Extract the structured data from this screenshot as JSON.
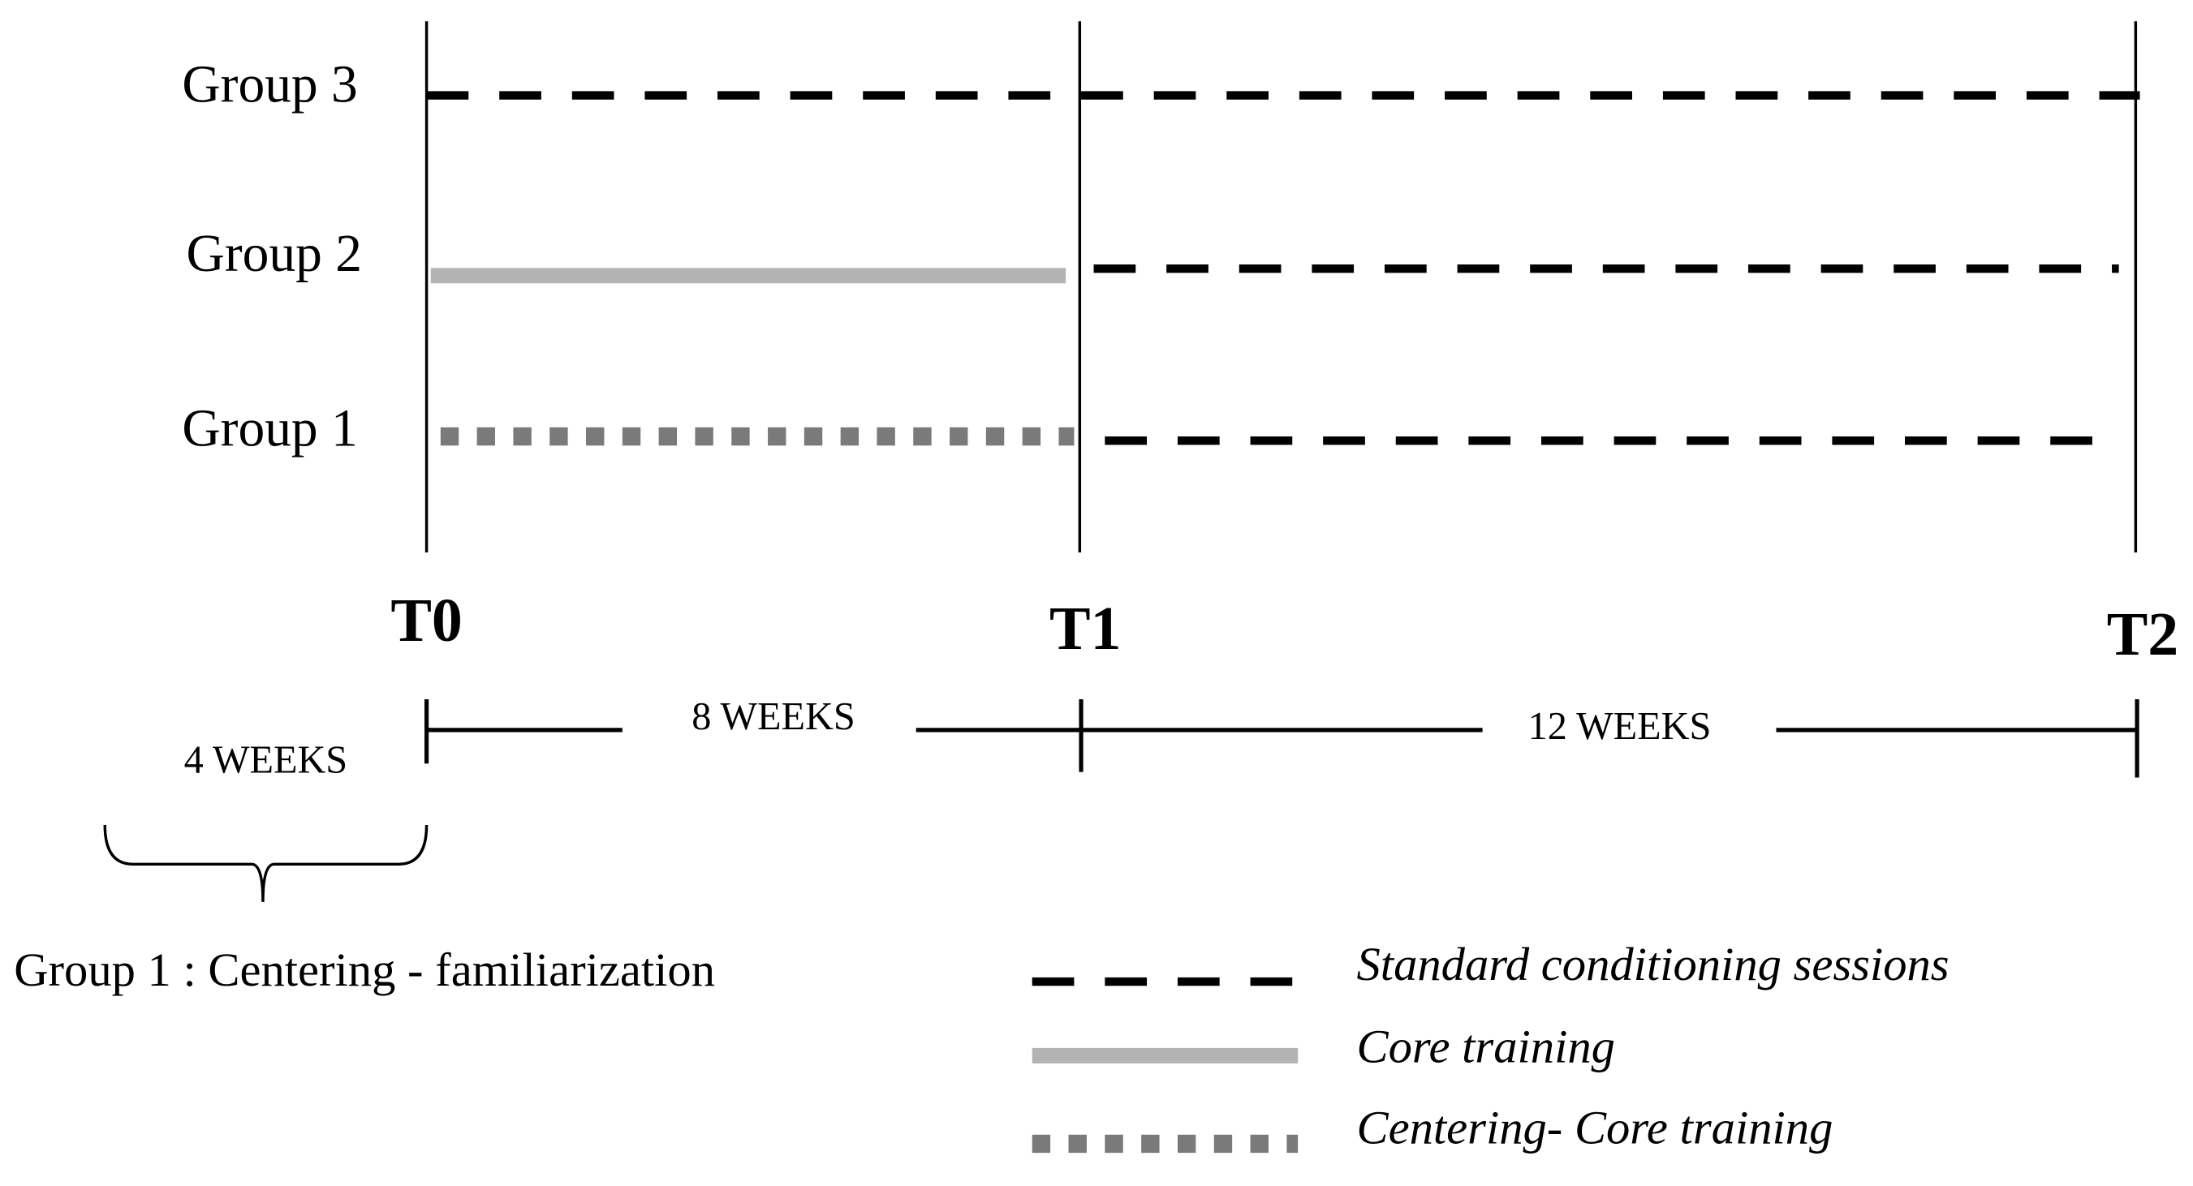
{
  "groups": [
    "Group 3",
    "Group 2",
    "Group 1"
  ],
  "time_points": [
    "T0",
    "T1",
    "T2"
  ],
  "durations": [
    "4 WEEKS",
    "8 WEEKS",
    "12 WEEKS"
  ],
  "note": "Group 1 : Centering - familiarization",
  "legend": [
    "Standard conditioning sessions",
    "Core  training",
    "Centering- Core training"
  ]
}
